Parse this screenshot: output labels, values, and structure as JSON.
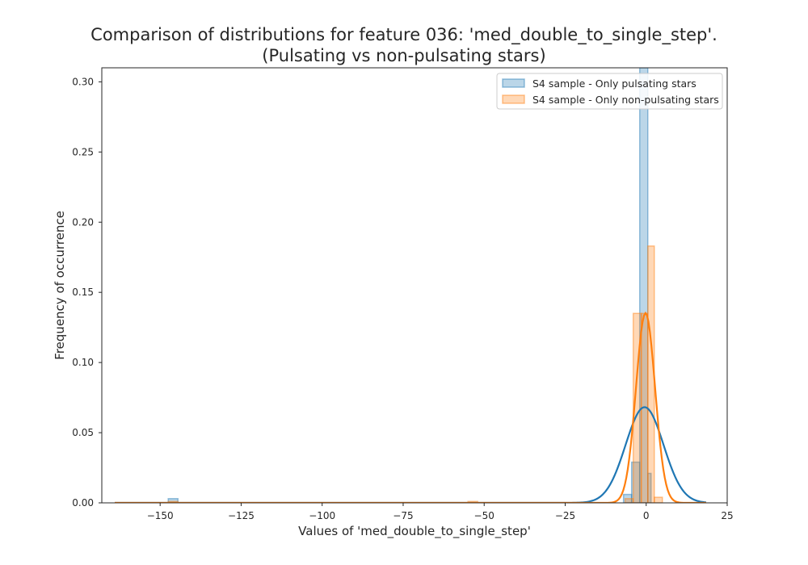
{
  "chart_data": {
    "type": "histogram",
    "title_line1": "Comparison of distributions for feature 036: 'med_double_to_single_step'.",
    "title_line2": "(Pulsating vs non-pulsating stars)",
    "xlabel": "Values of 'med_double_to_single_step'",
    "ylabel": "Frequency of occurrence",
    "xlim": [
      -168,
      25
    ],
    "ylim": [
      0,
      0.31
    ],
    "x_ticks": [
      -150,
      -125,
      -100,
      -75,
      -50,
      -25,
      0,
      25
    ],
    "x_tick_labels": [
      "−150",
      "−125",
      "−100",
      "−75",
      "−50",
      "−25",
      "0",
      "25"
    ],
    "y_ticks": [
      0.0,
      0.05,
      0.1,
      0.15,
      0.2,
      0.25,
      0.3
    ],
    "y_tick_labels": [
      "0.00",
      "0.05",
      "0.10",
      "0.15",
      "0.20",
      "0.25",
      "0.30"
    ],
    "grid": false,
    "legend_position": "upper right",
    "series": [
      {
        "name": "S4 sample - Only pulsating stars",
        "color": "#1f77b4",
        "bins": [
          {
            "x0": -147.5,
            "x1": -144.5,
            "y": 0.003
          },
          {
            "x0": -7.0,
            "x1": -4.5,
            "y": 0.006
          },
          {
            "x0": -4.5,
            "x1": -2.0,
            "y": 0.029
          },
          {
            "x0": -2.0,
            "x1": 0.5,
            "y": 0.31
          },
          {
            "x0": 0.5,
            "x1": 1.5,
            "y": 0.021
          }
        ],
        "kde": {
          "mean": -0.5,
          "sd": 5.85
        }
      },
      {
        "name": "S4 sample - Only non-pulsating stars",
        "color": "#ff7f0e",
        "bins": [
          {
            "x0": -147.5,
            "x1": -144.5,
            "y": 0.001
          },
          {
            "x0": -55.0,
            "x1": -52.0,
            "y": 0.001
          },
          {
            "x0": -6.5,
            "x1": -4.0,
            "y": 0.003
          },
          {
            "x0": -4.0,
            "x1": -1.5,
            "y": 0.135
          },
          {
            "x0": -1.5,
            "x1": 0.5,
            "y": 0.135
          },
          {
            "x0": 0.5,
            "x1": 2.5,
            "y": 0.183
          },
          {
            "x0": 2.5,
            "x1": 5.0,
            "y": 0.004
          }
        ],
        "kde": {
          "mean": -0.2,
          "sd": 2.95
        }
      }
    ]
  }
}
